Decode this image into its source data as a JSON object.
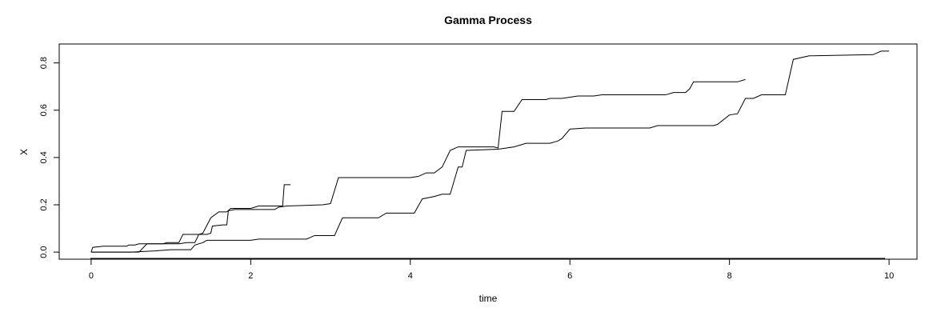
{
  "chart_data": {
    "type": "line",
    "title": "Gamma Process",
    "xlabel": "time",
    "ylabel": "X",
    "xlim": [
      -0.4,
      10.35
    ],
    "ylim": [
      -0.03,
      0.88
    ],
    "xticks": [
      0,
      2,
      4,
      6,
      8,
      10
    ],
    "yticks": [
      0.0,
      0.2,
      0.4,
      0.6,
      0.8
    ],
    "xtick_labels": [
      "0",
      "2",
      "4",
      "6",
      "8",
      "10"
    ],
    "ytick_labels": [
      "0.0",
      "0.2",
      "0.4",
      "0.6",
      "0.8"
    ],
    "grid": false,
    "line_color": "#000000",
    "series": [
      {
        "points": [
          [
            0.0,
            0.0
          ],
          [
            0.02,
            0.02
          ],
          [
            0.15,
            0.025
          ],
          [
            0.45,
            0.025
          ],
          [
            0.47,
            0.03
          ],
          [
            0.55,
            0.03
          ],
          [
            0.6,
            0.035
          ],
          [
            1.1,
            0.035
          ],
          [
            1.2,
            0.04
          ],
          [
            1.3,
            0.04
          ],
          [
            1.35,
            0.075
          ],
          [
            1.4,
            0.08
          ],
          [
            1.5,
            0.145
          ],
          [
            1.6,
            0.17
          ],
          [
            1.7,
            0.17
          ],
          [
            1.75,
            0.185
          ],
          [
            2.0,
            0.185
          ],
          [
            2.05,
            0.19
          ],
          [
            2.1,
            0.195
          ],
          [
            2.4,
            0.195
          ],
          [
            2.42,
            0.285
          ],
          [
            2.5,
            0.285
          ]
        ]
      },
      {
        "points": [
          [
            0.0,
            0.0
          ],
          [
            0.6,
            0.0
          ],
          [
            0.7,
            0.035
          ],
          [
            0.9,
            0.035
          ],
          [
            0.95,
            0.04
          ],
          [
            1.1,
            0.04
          ],
          [
            1.15,
            0.075
          ],
          [
            1.45,
            0.075
          ],
          [
            1.5,
            0.08
          ],
          [
            1.52,
            0.11
          ],
          [
            1.65,
            0.115
          ],
          [
            1.7,
            0.115
          ],
          [
            1.72,
            0.175
          ],
          [
            1.8,
            0.18
          ],
          [
            2.3,
            0.18
          ],
          [
            2.35,
            0.19
          ],
          [
            2.45,
            0.195
          ],
          [
            2.9,
            0.2
          ],
          [
            3.0,
            0.205
          ],
          [
            3.1,
            0.315
          ],
          [
            4.0,
            0.315
          ],
          [
            4.1,
            0.32
          ],
          [
            4.2,
            0.335
          ],
          [
            4.3,
            0.335
          ],
          [
            4.4,
            0.36
          ],
          [
            4.5,
            0.43
          ],
          [
            4.6,
            0.445
          ],
          [
            5.05,
            0.445
          ],
          [
            5.1,
            0.44
          ],
          [
            5.15,
            0.595
          ],
          [
            5.3,
            0.595
          ],
          [
            5.4,
            0.645
          ],
          [
            5.7,
            0.645
          ],
          [
            5.75,
            0.65
          ],
          [
            5.9,
            0.65
          ],
          [
            6.0,
            0.655
          ],
          [
            6.1,
            0.66
          ],
          [
            6.3,
            0.66
          ],
          [
            6.4,
            0.665
          ],
          [
            7.2,
            0.665
          ],
          [
            7.3,
            0.675
          ],
          [
            7.45,
            0.675
          ],
          [
            7.5,
            0.69
          ],
          [
            7.55,
            0.72
          ],
          [
            8.1,
            0.72
          ],
          [
            8.2,
            0.73
          ]
        ]
      },
      {
        "points": [
          [
            0.0,
            0.0
          ],
          [
            0.5,
            0.0
          ],
          [
            0.8,
            0.005
          ],
          [
            1.0,
            0.01
          ],
          [
            1.25,
            0.01
          ],
          [
            1.3,
            0.03
          ],
          [
            1.4,
            0.04
          ],
          [
            1.45,
            0.05
          ],
          [
            2.0,
            0.05
          ],
          [
            2.1,
            0.055
          ],
          [
            2.7,
            0.055
          ],
          [
            2.8,
            0.07
          ],
          [
            3.05,
            0.07
          ],
          [
            3.15,
            0.145
          ],
          [
            3.6,
            0.145
          ],
          [
            3.7,
            0.165
          ],
          [
            4.05,
            0.165
          ],
          [
            4.15,
            0.225
          ],
          [
            4.3,
            0.235
          ],
          [
            4.4,
            0.245
          ],
          [
            4.5,
            0.245
          ],
          [
            4.6,
            0.36
          ],
          [
            4.65,
            0.36
          ],
          [
            4.7,
            0.43
          ],
          [
            5.1,
            0.435
          ],
          [
            5.2,
            0.44
          ],
          [
            5.3,
            0.445
          ],
          [
            5.45,
            0.46
          ],
          [
            5.75,
            0.46
          ],
          [
            5.85,
            0.47
          ],
          [
            5.9,
            0.48
          ],
          [
            6.0,
            0.52
          ],
          [
            6.2,
            0.525
          ],
          [
            7.0,
            0.525
          ],
          [
            7.1,
            0.535
          ],
          [
            7.8,
            0.535
          ],
          [
            7.85,
            0.54
          ],
          [
            8.0,
            0.58
          ],
          [
            8.1,
            0.585
          ],
          [
            8.2,
            0.65
          ],
          [
            8.3,
            0.65
          ],
          [
            8.4,
            0.665
          ],
          [
            8.7,
            0.665
          ],
          [
            8.8,
            0.815
          ],
          [
            9.0,
            0.83
          ],
          [
            9.8,
            0.835
          ],
          [
            9.9,
            0.85
          ],
          [
            10.0,
            0.85
          ]
        ]
      }
    ]
  }
}
